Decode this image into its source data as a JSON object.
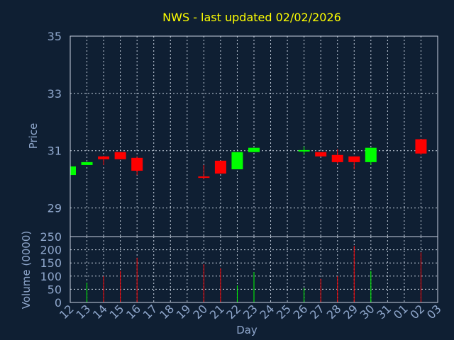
{
  "chart_data": {
    "type": "candlestick",
    "title": "NWS - last updated 02/02/2026",
    "xlabel": "Day",
    "colors": {
      "up": "#00ff00",
      "down": "#ff0000",
      "title": "#ffff00",
      "text": "#8fa7cc",
      "background": "#0f1f33",
      "grid": "#c8d2e0"
    },
    "x_tick_labels": [
      "12",
      "13",
      "14",
      "15",
      "16",
      "17",
      "18",
      "19",
      "20",
      "21",
      "22",
      "23",
      "24",
      "25",
      "26",
      "27",
      "28",
      "29",
      "30",
      "31",
      "01",
      "02",
      "03"
    ],
    "price_panel": {
      "ylabel": "Price",
      "ylim": [
        28,
        35
      ],
      "yticks": [
        29,
        31,
        33,
        35
      ],
      "grid": true
    },
    "volume_panel": {
      "ylabel": "Volume (0000)",
      "ylim": [
        0,
        250
      ],
      "yticks": [
        0,
        50,
        100,
        150,
        200,
        250
      ],
      "grid": true
    },
    "candles": [
      {
        "day": "12",
        "open": 30.15,
        "high": 30.45,
        "low": 30.15,
        "close": 30.45,
        "volume": 0
      },
      {
        "day": "13",
        "open": 30.5,
        "high": 30.6,
        "low": 30.5,
        "close": 30.6,
        "volume": 75
      },
      {
        "day": "14",
        "open": 30.8,
        "high": 30.82,
        "low": 30.5,
        "close": 30.7,
        "volume": 100
      },
      {
        "day": "15",
        "open": 30.95,
        "high": 30.95,
        "low": 30.7,
        "close": 30.7,
        "volume": 120
      },
      {
        "day": "16",
        "open": 30.75,
        "high": 30.8,
        "low": 30.15,
        "close": 30.3,
        "volume": 170
      },
      {
        "day": "20",
        "open": 30.1,
        "high": 30.5,
        "low": 30.0,
        "close": 30.05,
        "volume": 145
      },
      {
        "day": "21",
        "open": 30.65,
        "high": 30.65,
        "low": 30.2,
        "close": 30.2,
        "volume": 130
      },
      {
        "day": "22",
        "open": 30.35,
        "high": 30.95,
        "low": 30.35,
        "close": 30.95,
        "volume": 65
      },
      {
        "day": "23",
        "open": 30.95,
        "high": 31.1,
        "low": 30.95,
        "close": 31.1,
        "volume": 115
      },
      {
        "day": "26",
        "open": 31.0,
        "high": 31.15,
        "low": 30.85,
        "close": 31.02,
        "volume": 55
      },
      {
        "day": "27",
        "open": 30.95,
        "high": 30.95,
        "low": 30.8,
        "close": 30.8,
        "volume": 90
      },
      {
        "day": "28",
        "open": 30.85,
        "high": 31.05,
        "low": 30.55,
        "close": 30.6,
        "volume": 100
      },
      {
        "day": "29",
        "open": 30.8,
        "high": 30.8,
        "low": 30.35,
        "close": 30.6,
        "volume": 215
      },
      {
        "day": "30",
        "open": 30.6,
        "high": 31.1,
        "low": 30.5,
        "close": 31.1,
        "volume": 120
      },
      {
        "day": "02",
        "open": 31.4,
        "high": 31.4,
        "low": 30.85,
        "close": 30.9,
        "volume": 190
      }
    ]
  }
}
